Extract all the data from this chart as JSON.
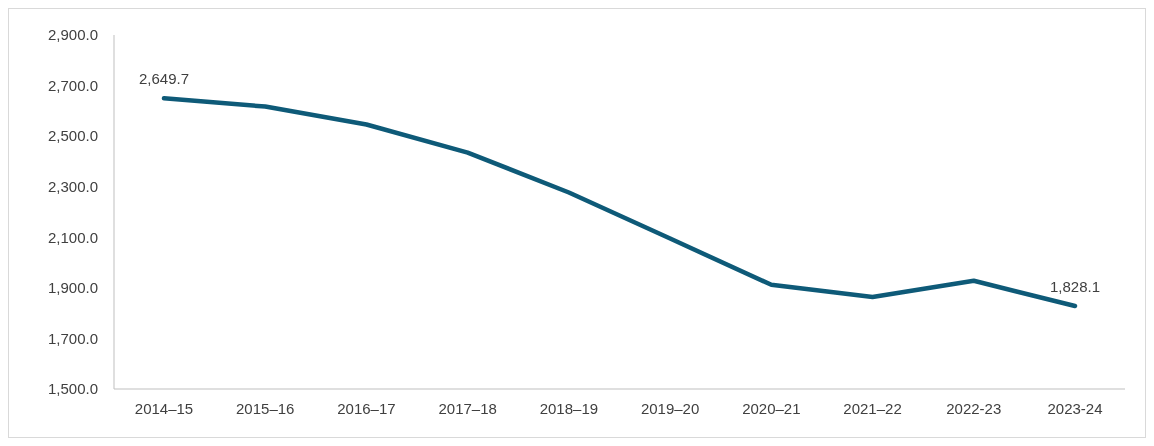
{
  "chart_data": {
    "type": "line",
    "categories": [
      "2014–15",
      "2015–16",
      "2016–17",
      "2017–18",
      "2018–19",
      "2019–20",
      "2020–21",
      "2021–22",
      "2022-23",
      "2023-24"
    ],
    "series": [
      {
        "color": "#0e5a78",
        "values": [
          2649.7,
          2617,
          2546,
          2435,
          2277,
          2095,
          1912,
          1864,
          1928,
          1828.1
        ],
        "value_labels": [
          "2,649.7",
          null,
          null,
          null,
          null,
          null,
          null,
          null,
          null,
          "1,828.1"
        ]
      }
    ],
    "ylim": [
      1500,
      2900
    ],
    "yticks": [
      {
        "value": 1500,
        "label": "1,500.0"
      },
      {
        "value": 1700,
        "label": "1,700.0"
      },
      {
        "value": 1900,
        "label": "1,900.0"
      },
      {
        "value": 2100,
        "label": "2,100.0"
      },
      {
        "value": 2300,
        "label": "2,300.0"
      },
      {
        "value": 2500,
        "label": "2,500.0"
      },
      {
        "value": 2700,
        "label": "2,700.0"
      },
      {
        "value": 2900,
        "label": "2,900.0"
      }
    ],
    "grid": false,
    "legend": false,
    "marker": "none",
    "line_style": "solid"
  }
}
